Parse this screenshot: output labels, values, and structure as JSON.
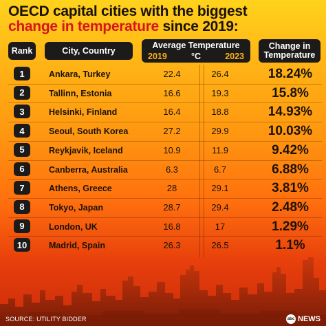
{
  "title": {
    "line1": "OECD capital cities with the biggest",
    "line2_highlight": "change in temperature",
    "line2_rest": " since 2019:"
  },
  "headers": {
    "rank": "Rank",
    "city": "City, Country",
    "avg_temp": "Average Temperature",
    "year_a": "2019",
    "unit": "°C",
    "year_b": "2023",
    "change_line1": "Change in",
    "change_line2": "Temperature"
  },
  "rows": [
    {
      "rank": "1",
      "city": "Ankara, Turkey",
      "t2019": "22.4",
      "t2023": "26.4",
      "change": "18.24%"
    },
    {
      "rank": "2",
      "city": "Tallinn, Estonia",
      "t2019": "16.6",
      "t2023": "19.3",
      "change": "15.8%"
    },
    {
      "rank": "3",
      "city": "Helsinki, Finland",
      "t2019": "16.4",
      "t2023": "18.8",
      "change": "14.93%"
    },
    {
      "rank": "4",
      "city": "Seoul, South Korea",
      "t2019": "27.2",
      "t2023": "29.9",
      "change": "10.03%"
    },
    {
      "rank": "5",
      "city": "Reykjavik, Iceland",
      "t2019": "10.9",
      "t2023": "11.9",
      "change": "9.42%"
    },
    {
      "rank": "6",
      "city": "Canberra, Australia",
      "t2019": "6.3",
      "t2023": "6.7",
      "change": "6.88%"
    },
    {
      "rank": "7",
      "city": "Athens, Greece",
      "t2019": "28",
      "t2023": "29.1",
      "change": "3.81%"
    },
    {
      "rank": "8",
      "city": "Tokyo, Japan",
      "t2019": "28.7",
      "t2023": "29.4",
      "change": "2.48%"
    },
    {
      "rank": "9",
      "city": "London, UK",
      "t2019": "16.8",
      "t2023": "17",
      "change": "1.29%"
    },
    {
      "rank": "10",
      "city": "Madrid, Spain",
      "t2019": "26.3",
      "t2023": "26.5",
      "change": "1.1%"
    }
  ],
  "footer": {
    "source": "SOURCE: UTILITY BIDDER",
    "logo_mark": "abc",
    "logo_text": "NEWS"
  },
  "colors": {
    "title_highlight": "#d8141c",
    "header_bg": "#1c1b1a",
    "header_year": "#ffb31a",
    "background_top": "#ffd21c",
    "background_bottom": "#c92a0a"
  }
}
